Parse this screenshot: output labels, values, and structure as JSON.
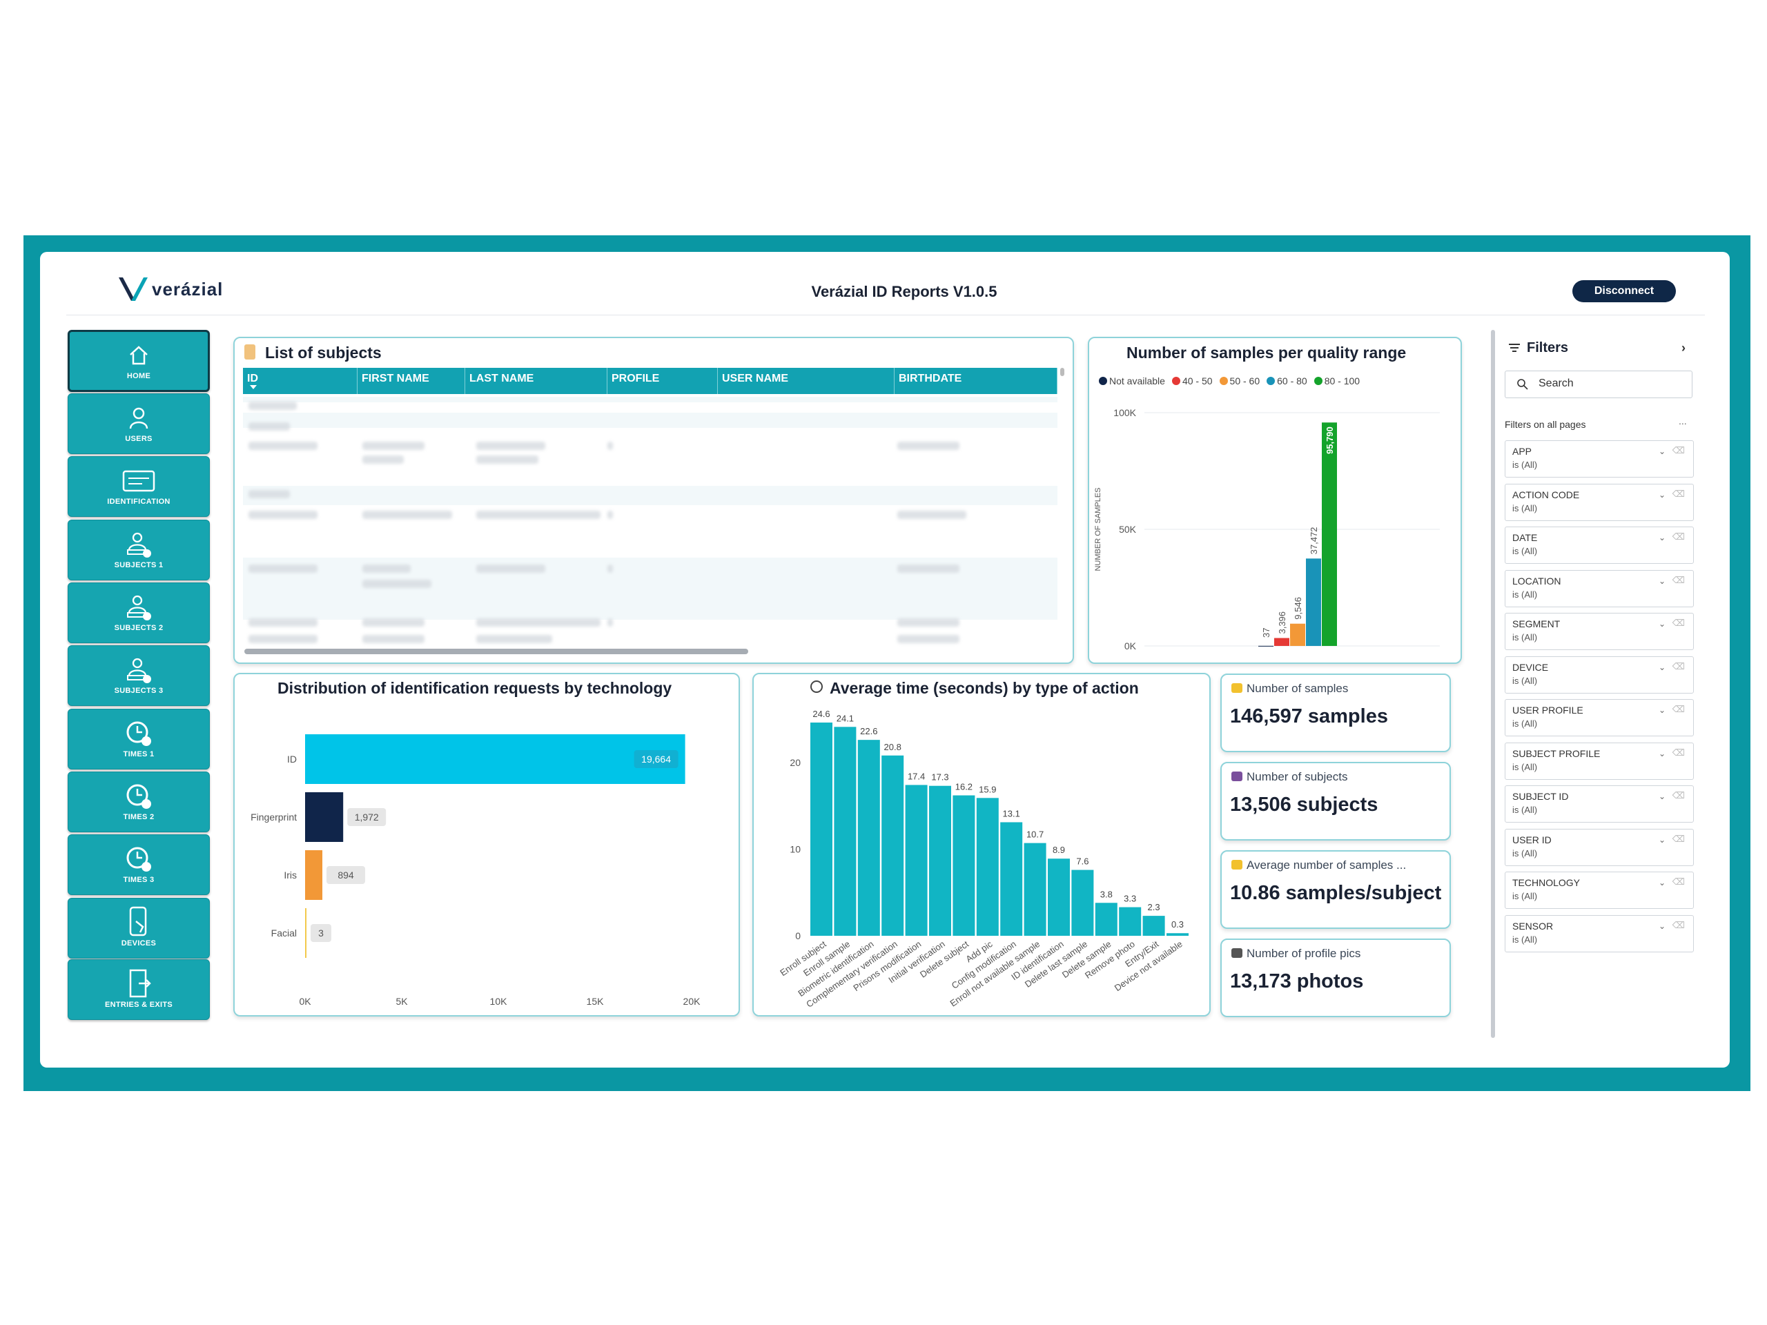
{
  "header": {
    "logo_text": "verázial",
    "report_title": "Verázial ID Reports V1.0.5",
    "disconnect_label": "Disconnect"
  },
  "nav": [
    {
      "label": "HOME",
      "icon": "home-icon",
      "active": true
    },
    {
      "label": "USERS",
      "icon": "user-icon"
    },
    {
      "label": "IDENTIFICATION",
      "icon": "id-card-icon"
    },
    {
      "label": "SUBJECTS 1",
      "icon": "subject-icon"
    },
    {
      "label": "SUBJECTS 2",
      "icon": "subject-icon"
    },
    {
      "label": "SUBJECTS 3",
      "icon": "subject-icon"
    },
    {
      "label": "TIMES 1",
      "icon": "clock-icon"
    },
    {
      "label": "TIMES 2",
      "icon": "clock-icon"
    },
    {
      "label": "TIMES 3",
      "icon": "clock-icon"
    },
    {
      "label": "DEVICES",
      "icon": "phone-icon"
    },
    {
      "label": "ENTRIES & EXITS",
      "icon": "door-icon"
    }
  ],
  "subjects_table": {
    "title": "List of subjects",
    "columns": [
      "ID",
      "FIRST NAME",
      "LAST NAME",
      "PROFILE",
      "USER NAME",
      "BIRTHDATE"
    ]
  },
  "kpis": [
    {
      "label": "Number of samples",
      "value": "146,597 samples",
      "icon": "hand-icon"
    },
    {
      "label": "Number of subjects",
      "value": "13,506 subjects",
      "icon": "people-icon"
    },
    {
      "label": "Average number of samples ...",
      "value": "10.86 samples/subject",
      "icon": "hand-people-icon"
    },
    {
      "label": "Number of profile pics",
      "value": "13,173 photos",
      "icon": "camera-icon"
    }
  ],
  "filters": {
    "title": "Filters",
    "search_placeholder": "Search",
    "section_label": "Filters on all pages",
    "items": [
      {
        "name": "APP",
        "value": "is (All)"
      },
      {
        "name": "ACTION CODE",
        "value": "is (All)"
      },
      {
        "name": "DATE",
        "value": "is (All)"
      },
      {
        "name": "LOCATION",
        "value": "is (All)"
      },
      {
        "name": "SEGMENT",
        "value": "is (All)"
      },
      {
        "name": "DEVICE",
        "value": "is (All)"
      },
      {
        "name": "USER PROFILE",
        "value": "is (All)"
      },
      {
        "name": "SUBJECT PROFILE",
        "value": "is (All)"
      },
      {
        "name": "SUBJECT ID",
        "value": "is (All)"
      },
      {
        "name": "USER ID",
        "value": "is (All)"
      },
      {
        "name": "TECHNOLOGY",
        "value": "is (All)"
      },
      {
        "name": "SENSOR",
        "value": "is (All)"
      }
    ]
  },
  "chart_data": [
    {
      "type": "bar",
      "title": "Number of samples per quality range",
      "ylabel": "NUMBER OF SAMPLES",
      "ylim": [
        0,
        100000
      ],
      "yticks": [
        "0K",
        "50K",
        "100K"
      ],
      "legend_position": "top",
      "series": [
        {
          "name": "Not available",
          "value": 37,
          "color": "#10254a"
        },
        {
          "name": "40 - 50",
          "value": 3396,
          "label": "3,396",
          "color": "#e53935"
        },
        {
          "name": "50 - 60",
          "value": 9546,
          "label": "9,546",
          "color": "#f29837"
        },
        {
          "name": "60 - 80",
          "value": 37472,
          "label": "37,472",
          "color": "#1993b8"
        },
        {
          "name": "80 - 100",
          "value": 95790,
          "label": "95,790",
          "color": "#14a32b"
        }
      ]
    },
    {
      "type": "bar",
      "orientation": "horizontal",
      "title": "Distribution of identification requests by technology",
      "categories": [
        "ID",
        "Fingerprint",
        "Iris",
        "Facial"
      ],
      "values": [
        19664,
        1972,
        894,
        3
      ],
      "labels": [
        "19,664",
        "1,972",
        "894",
        "3"
      ],
      "colors": [
        "#00c4e8",
        "#10254a",
        "#f29837",
        "#f2c94c"
      ],
      "xlim": [
        0,
        20000
      ],
      "xticks": [
        "0K",
        "5K",
        "10K",
        "15K",
        "20K"
      ]
    },
    {
      "type": "bar",
      "title": "Average time (seconds) by type of action",
      "categories": [
        "Enroll subject",
        "Enroll sample",
        "Biometric identification",
        "Complementary verification",
        "Prisons modification",
        "Initial verification",
        "Delete subject",
        "Add pic",
        "Config modification",
        "Enroll not available sample",
        "ID identification",
        "Delete last sample",
        "Delete sample",
        "Remove photo",
        "Entry/Exit",
        "Device not available"
      ],
      "values": [
        24.6,
        24.1,
        22.6,
        20.8,
        17.4,
        17.3,
        16.2,
        15.9,
        13.1,
        10.7,
        8.9,
        7.6,
        3.8,
        3.3,
        2.3,
        0.3
      ],
      "ylim": [
        0,
        25
      ],
      "yticks": [
        0,
        10,
        20
      ],
      "color": "#11b5c4"
    }
  ]
}
